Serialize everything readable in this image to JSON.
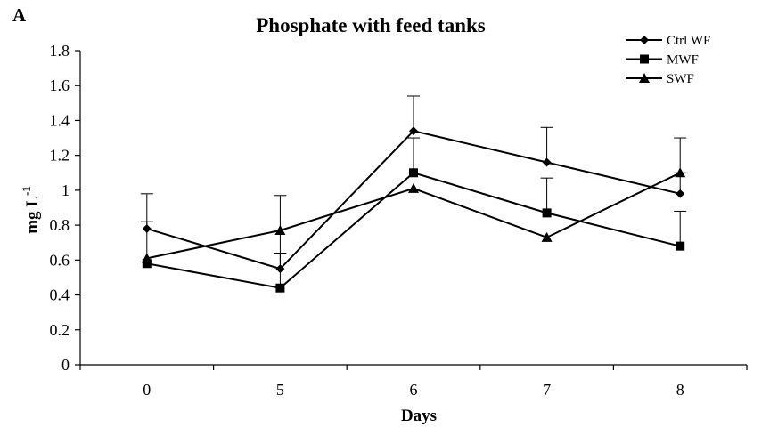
{
  "panel_label": "A",
  "chart_data": {
    "type": "line",
    "title": "Phosphate with feed tanks",
    "xlabel": "Days",
    "ylabel": "mg L",
    "ylabel_superscript": "-1",
    "categories": [
      "0",
      "5",
      "6",
      "7",
      "8"
    ],
    "ylim": [
      0,
      1.8
    ],
    "yticks": [
      "0",
      "0.2",
      "0.4",
      "0.6",
      "0.8",
      "1",
      "1.2",
      "1.4",
      "1.6",
      "1.8"
    ],
    "grid": false,
    "legend_position": "top-right",
    "series": [
      {
        "name": "Ctrl WF",
        "marker": "diamond",
        "values": [
          0.78,
          0.55,
          1.34,
          1.16,
          0.98
        ],
        "error": [
          0.2,
          0.42,
          0.2,
          0.2,
          0.12
        ]
      },
      {
        "name": "MWF",
        "marker": "square",
        "values": [
          0.58,
          0.44,
          1.1,
          0.87,
          0.68
        ],
        "error": [
          0.24,
          0.2,
          0.2,
          0.2,
          0.2
        ]
      },
      {
        "name": "SWF",
        "marker": "triangle",
        "values": [
          0.61,
          0.77,
          1.01,
          0.73,
          1.1
        ],
        "error": [
          0.0,
          0.0,
          0.0,
          0.0,
          0.2
        ]
      }
    ]
  }
}
